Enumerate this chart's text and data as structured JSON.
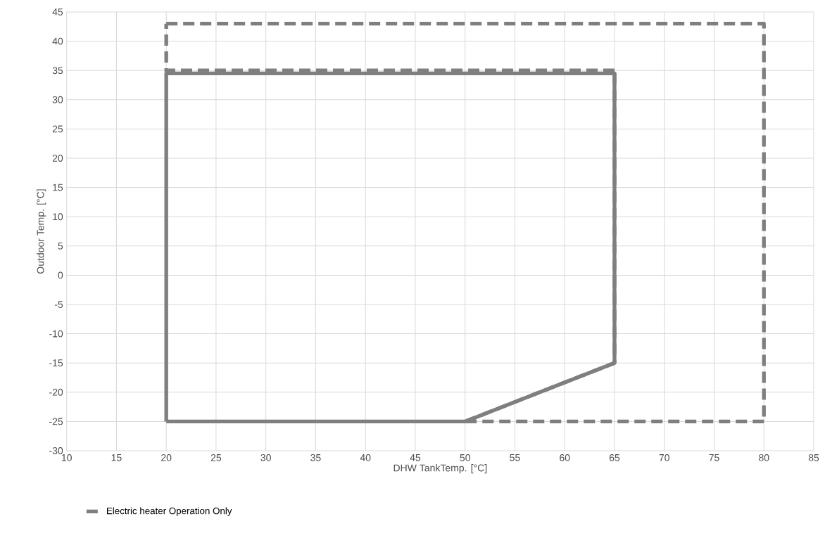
{
  "chart_data": {
    "type": "line",
    "xlabel": "DHW TankTemp. [°C]",
    "ylabel": "Outdoor Temp. [°C]",
    "xlim": [
      10,
      85
    ],
    "ylim": [
      -30,
      45
    ],
    "xticks": [
      10,
      15,
      20,
      25,
      30,
      35,
      40,
      45,
      50,
      55,
      60,
      65,
      70,
      75,
      80,
      85
    ],
    "yticks": [
      -30,
      -25,
      -20,
      -15,
      -10,
      -5,
      0,
      5,
      10,
      15,
      20,
      25,
      30,
      35,
      40,
      45
    ],
    "grid": true,
    "legend": "bottom left",
    "marker": "none",
    "series": [
      {
        "color": "#7f7f7f",
        "line_style": "solid",
        "x": [
          20,
          20,
          65,
          65
        ],
        "values": [
          -25,
          34.5,
          34.5,
          -15
        ]
      },
      {
        "color": "#7f7f7f",
        "line_style": "solid",
        "x": [
          65,
          50,
          20
        ],
        "values": [
          -15,
          -25,
          -25
        ]
      },
      {
        "name": "Electric heater Operation Only",
        "color": "#7f7f7f",
        "line_style": "dashed",
        "x": [
          50,
          65,
          65
        ],
        "values": [
          -25,
          -15,
          35
        ]
      },
      {
        "color": "#7f7f7f",
        "line_style": "dashed",
        "x": [
          65,
          20,
          20
        ],
        "values": [
          35,
          35,
          43
        ]
      },
      {
        "color": "#7f7f7f",
        "line_style": "dashed",
        "x": [
          20,
          80,
          80
        ],
        "values": [
          43,
          43,
          -25
        ]
      },
      {
        "color": "#7f7f7f",
        "line_style": "dashed",
        "x": [
          80,
          50
        ],
        "values": [
          -25,
          -25
        ]
      }
    ]
  }
}
